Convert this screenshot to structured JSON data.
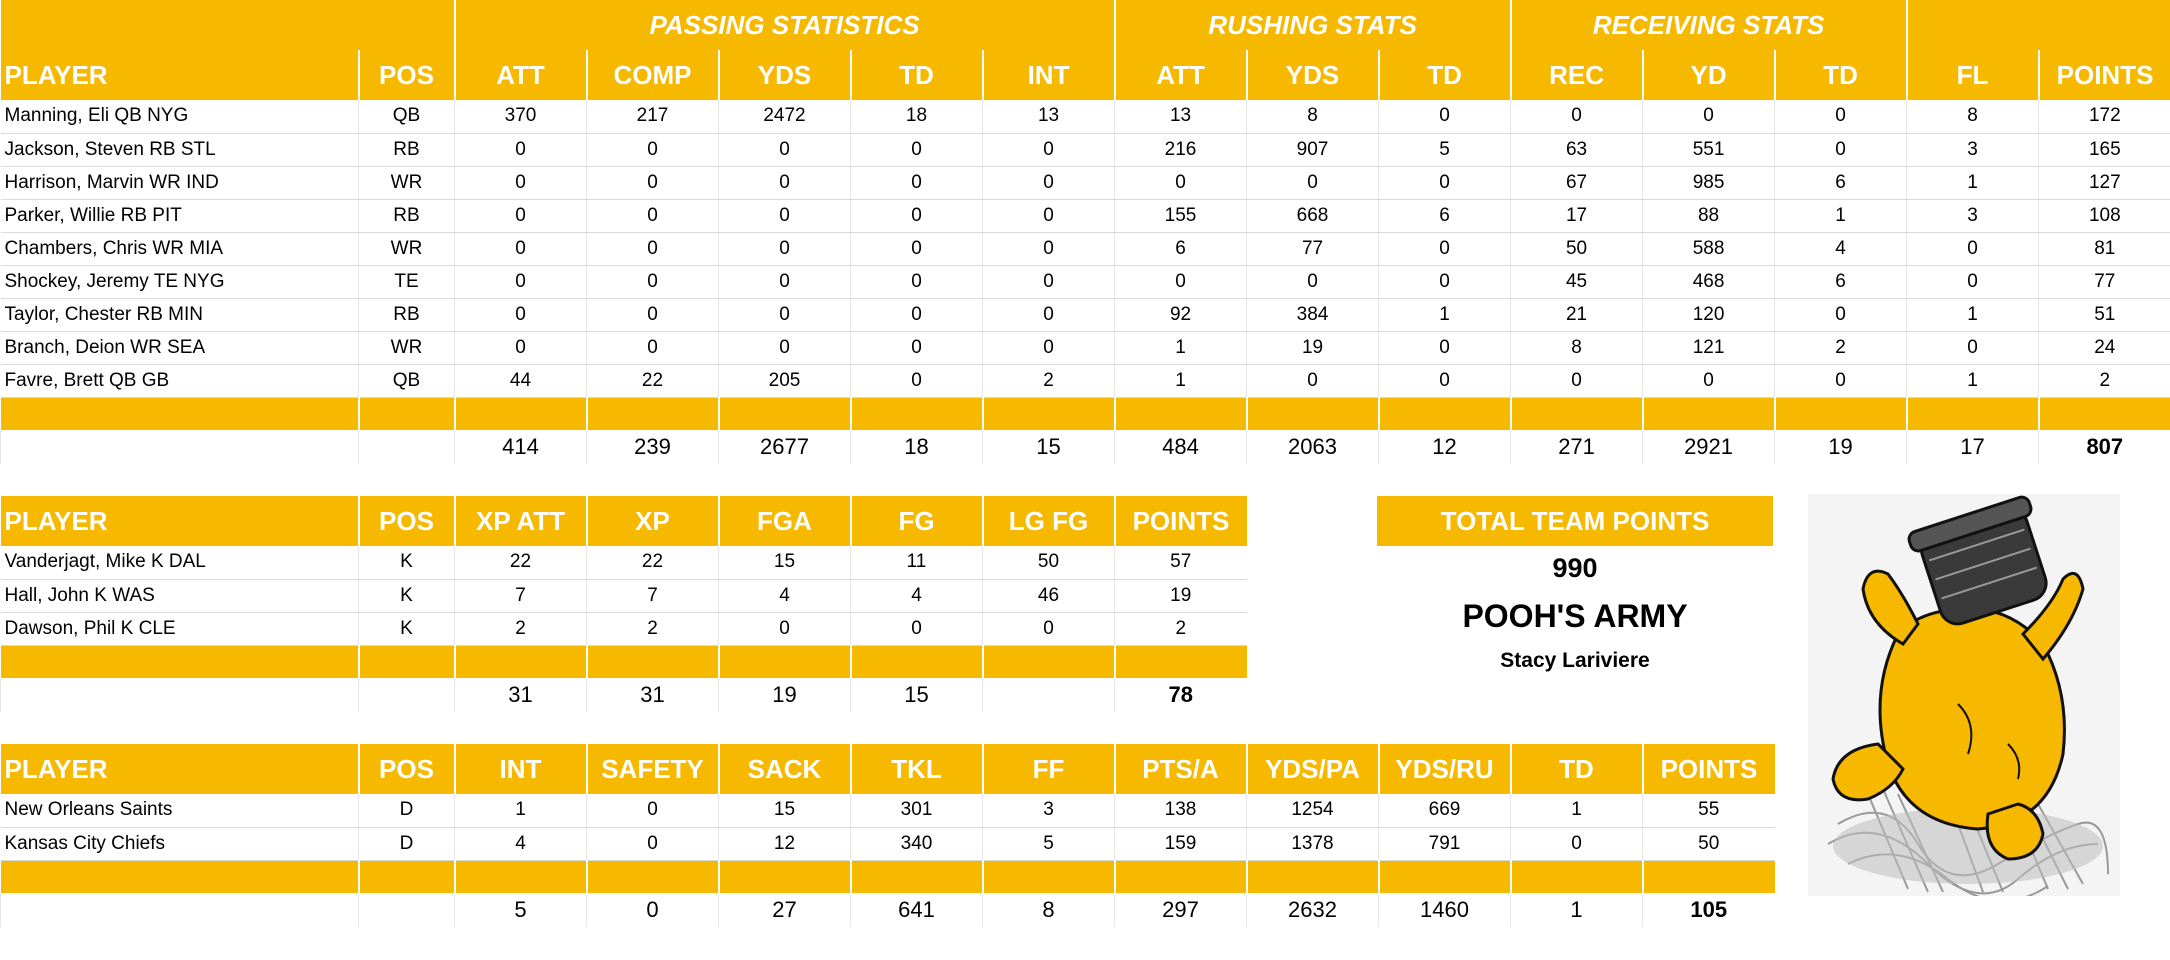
{
  "player_table": {
    "groups": [
      "PASSING STATISTICS",
      "RUSHING STATS",
      "RECEIVING STATS"
    ],
    "headers": [
      "PLAYER",
      "POS",
      "ATT",
      "COMP",
      "YDS",
      "TD",
      "INT",
      "ATT",
      "YDS",
      "TD",
      "REC",
      "YD",
      "TD",
      "FL",
      "POINTS"
    ],
    "rows": [
      [
        "Manning, Eli QB NYG",
        "QB",
        "370",
        "217",
        "2472",
        "18",
        "13",
        "13",
        "8",
        "0",
        "0",
        "0",
        "0",
        "8",
        "172"
      ],
      [
        "Jackson, Steven RB STL",
        "RB",
        "0",
        "0",
        "0",
        "0",
        "0",
        "216",
        "907",
        "5",
        "63",
        "551",
        "0",
        "3",
        "165"
      ],
      [
        "Harrison, Marvin WR IND",
        "WR",
        "0",
        "0",
        "0",
        "0",
        "0",
        "0",
        "0",
        "0",
        "67",
        "985",
        "6",
        "1",
        "127"
      ],
      [
        "Parker, Willie RB PIT",
        "RB",
        "0",
        "0",
        "0",
        "0",
        "0",
        "155",
        "668",
        "6",
        "17",
        "88",
        "1",
        "3",
        "108"
      ],
      [
        "Chambers, Chris WR MIA",
        "WR",
        "0",
        "0",
        "0",
        "0",
        "0",
        "6",
        "77",
        "0",
        "50",
        "588",
        "4",
        "0",
        "81"
      ],
      [
        "Shockey, Jeremy TE NYG",
        "TE",
        "0",
        "0",
        "0",
        "0",
        "0",
        "0",
        "0",
        "0",
        "45",
        "468",
        "6",
        "0",
        "77"
      ],
      [
        "Taylor, Chester RB MIN",
        "RB",
        "0",
        "0",
        "0",
        "0",
        "0",
        "92",
        "384",
        "1",
        "21",
        "120",
        "0",
        "1",
        "51"
      ],
      [
        "Branch, Deion WR SEA",
        "WR",
        "0",
        "0",
        "0",
        "0",
        "0",
        "1",
        "19",
        "0",
        "8",
        "121",
        "2",
        "0",
        "24"
      ],
      [
        "Favre, Brett QB GB",
        "QB",
        "44",
        "22",
        "205",
        "0",
        "2",
        "1",
        "0",
        "0",
        "0",
        "0",
        "0",
        "1",
        "2"
      ]
    ],
    "totals": [
      "",
      "",
      "414",
      "239",
      "2677",
      "18",
      "15",
      "484",
      "2063",
      "12",
      "271",
      "2921",
      "19",
      "17",
      "807"
    ]
  },
  "kicker_table": {
    "headers": [
      "PLAYER",
      "POS",
      "XP ATT",
      "XP",
      "FGA",
      "FG",
      "LG FG",
      "POINTS"
    ],
    "rows": [
      [
        "Vanderjagt, Mike K DAL",
        "K",
        "22",
        "22",
        "15",
        "11",
        "50",
        "57"
      ],
      [
        "Hall, John K WAS",
        "K",
        "7",
        "7",
        "4",
        "4",
        "46",
        "19"
      ],
      [
        "Dawson, Phil K CLE",
        "K",
        "2",
        "2",
        "0",
        "0",
        "0",
        "2"
      ]
    ],
    "totals": [
      "",
      "",
      "31",
      "31",
      "19",
      "15",
      "",
      "78"
    ]
  },
  "defense_table": {
    "headers": [
      "PLAYER",
      "POS",
      "INT",
      "SAFETY",
      "SACK",
      "TKL",
      "FF",
      "PTS/A",
      "YDS/PA",
      "YDS/RU",
      "TD",
      "POINTS"
    ],
    "rows": [
      [
        "New Orleans Saints",
        "D",
        "1",
        "0",
        "15",
        "301",
        "3",
        "138",
        "1254",
        "669",
        "1",
        "55"
      ],
      [
        "Kansas City Chiefs",
        "D",
        "4",
        "0",
        "12",
        "340",
        "5",
        "159",
        "1378",
        "791",
        "0",
        "50"
      ]
    ],
    "totals": [
      "",
      "",
      "5",
      "0",
      "27",
      "641",
      "8",
      "297",
      "2632",
      "1460",
      "1",
      "105"
    ]
  },
  "summary": {
    "label": "TOTAL TEAM POINTS",
    "points": "990",
    "team_name": "POOH'S ARMY",
    "owner": "Stacy Lariviere"
  },
  "image": {
    "icon": "winnie-the-pooh-honey-pot-icon",
    "colors": {
      "body": "#f7b800",
      "outline": "#111111",
      "shadow": "#9a9a9a"
    }
  },
  "colors": {
    "accent": "#f7b800",
    "header_text": "#ffffff"
  }
}
